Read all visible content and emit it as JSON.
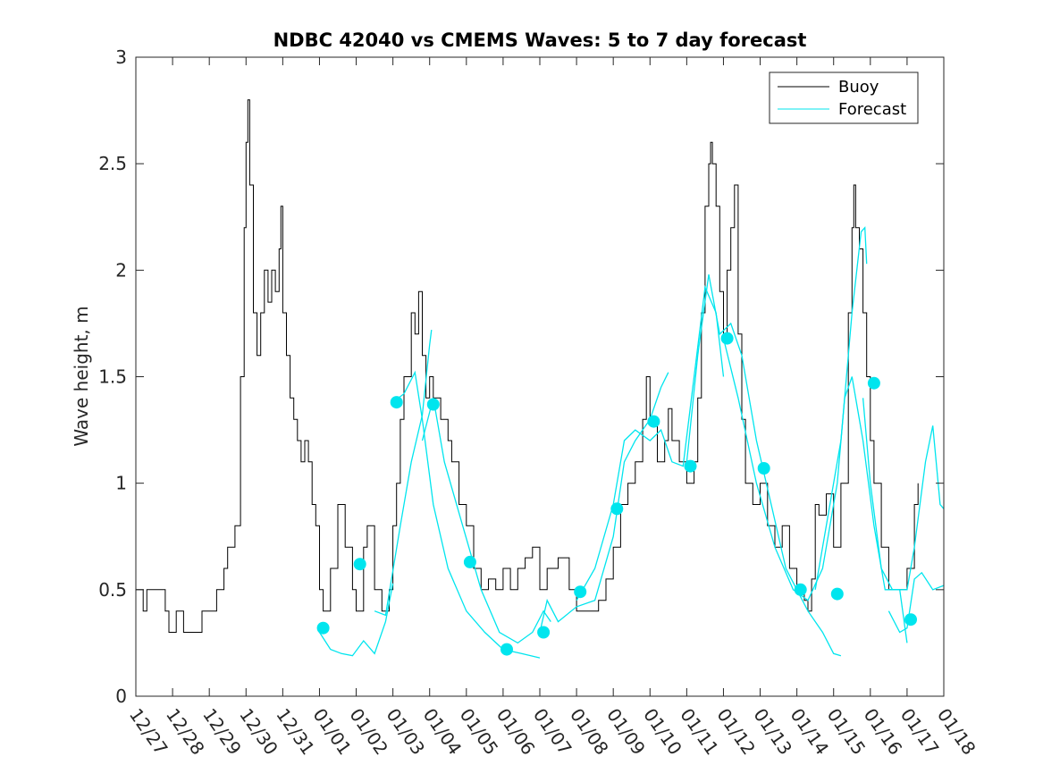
{
  "chart_data": {
    "type": "line",
    "title": "NDBC 42040 vs CMEMS Waves: 5 to 7 day forecast",
    "xlabel": "",
    "ylabel": "Wave height, m",
    "xlim": [
      0,
      22
    ],
    "ylim": [
      0,
      3
    ],
    "y_ticks": [
      "0",
      "0.5",
      "1",
      "1.5",
      "2",
      "2.5",
      "3"
    ],
    "x_tick_labels": [
      "12/27",
      "12/28",
      "12/29",
      "12/30",
      "12/31",
      "01/01",
      "01/02",
      "01/03",
      "01/04",
      "01/05",
      "01/06",
      "01/07",
      "01/08",
      "01/09",
      "01/10",
      "01/11",
      "01/12",
      "01/13",
      "01/14",
      "01/15",
      "01/16",
      "01/17",
      "01/18"
    ],
    "grid": false,
    "legend": {
      "location": "top-right",
      "entries": [
        "Buoy",
        "Forecast"
      ]
    },
    "colors": {
      "buoy": "#000000",
      "forecast": "#00e5ee"
    },
    "buoy_keypoints": [
      [
        0.0,
        0.5
      ],
      [
        0.2,
        0.4
      ],
      [
        0.3,
        0.5
      ],
      [
        0.8,
        0.4
      ],
      [
        0.9,
        0.3
      ],
      [
        1.1,
        0.4
      ],
      [
        1.3,
        0.3
      ],
      [
        1.6,
        0.3
      ],
      [
        1.8,
        0.4
      ],
      [
        2.2,
        0.5
      ],
      [
        2.4,
        0.6
      ],
      [
        2.5,
        0.7
      ],
      [
        2.7,
        0.8
      ],
      [
        2.85,
        1.5
      ],
      [
        2.95,
        2.2
      ],
      [
        3.0,
        2.6
      ],
      [
        3.05,
        2.8
      ],
      [
        3.1,
        2.4
      ],
      [
        3.2,
        1.8
      ],
      [
        3.3,
        1.6
      ],
      [
        3.4,
        1.8
      ],
      [
        3.5,
        2.0
      ],
      [
        3.6,
        1.85
      ],
      [
        3.7,
        2.0
      ],
      [
        3.8,
        1.9
      ],
      [
        3.9,
        2.1
      ],
      [
        3.95,
        2.3
      ],
      [
        4.0,
        1.8
      ],
      [
        4.1,
        1.6
      ],
      [
        4.2,
        1.4
      ],
      [
        4.3,
        1.3
      ],
      [
        4.4,
        1.2
      ],
      [
        4.5,
        1.1
      ],
      [
        4.6,
        1.2
      ],
      [
        4.7,
        1.1
      ],
      [
        4.8,
        0.9
      ],
      [
        4.9,
        0.8
      ],
      [
        5.0,
        0.5
      ],
      [
        5.1,
        0.4
      ],
      [
        5.3,
        0.6
      ],
      [
        5.5,
        0.9
      ],
      [
        5.7,
        0.7
      ],
      [
        5.9,
        0.5
      ],
      [
        6.0,
        0.4
      ],
      [
        6.2,
        0.7
      ],
      [
        6.3,
        0.8
      ],
      [
        6.5,
        0.5
      ],
      [
        6.7,
        0.4
      ],
      [
        6.9,
        0.5
      ],
      [
        7.0,
        0.8
      ],
      [
        7.1,
        1.0
      ],
      [
        7.2,
        1.3
      ],
      [
        7.3,
        1.5
      ],
      [
        7.5,
        1.8
      ],
      [
        7.6,
        1.7
      ],
      [
        7.7,
        1.9
      ],
      [
        7.8,
        1.6
      ],
      [
        7.9,
        1.4
      ],
      [
        8.0,
        1.5
      ],
      [
        8.1,
        1.4
      ],
      [
        8.3,
        1.3
      ],
      [
        8.5,
        1.2
      ],
      [
        8.6,
        1.1
      ],
      [
        8.8,
        0.9
      ],
      [
        9.0,
        0.8
      ],
      [
        9.2,
        0.6
      ],
      [
        9.4,
        0.5
      ],
      [
        9.6,
        0.55
      ],
      [
        9.8,
        0.5
      ],
      [
        10.0,
        0.6
      ],
      [
        10.2,
        0.5
      ],
      [
        10.4,
        0.6
      ],
      [
        10.6,
        0.65
      ],
      [
        10.8,
        0.7
      ],
      [
        11.0,
        0.5
      ],
      [
        11.2,
        0.6
      ],
      [
        11.5,
        0.65
      ],
      [
        11.8,
        0.5
      ],
      [
        12.0,
        0.4
      ],
      [
        12.3,
        0.4
      ],
      [
        12.6,
        0.45
      ],
      [
        12.8,
        0.55
      ],
      [
        13.0,
        0.7
      ],
      [
        13.2,
        0.9
      ],
      [
        13.4,
        1.0
      ],
      [
        13.6,
        1.1
      ],
      [
        13.8,
        1.3
      ],
      [
        13.9,
        1.5
      ],
      [
        14.0,
        1.3
      ],
      [
        14.2,
        1.1
      ],
      [
        14.4,
        1.2
      ],
      [
        14.5,
        1.35
      ],
      [
        14.6,
        1.2
      ],
      [
        14.8,
        1.1
      ],
      [
        15.0,
        1.0
      ],
      [
        15.2,
        1.1
      ],
      [
        15.3,
        1.4
      ],
      [
        15.4,
        1.8
      ],
      [
        15.5,
        2.3
      ],
      [
        15.6,
        2.5
      ],
      [
        15.65,
        2.6
      ],
      [
        15.7,
        2.5
      ],
      [
        15.8,
        2.3
      ],
      [
        15.9,
        1.9
      ],
      [
        16.0,
        1.7
      ],
      [
        16.1,
        2.0
      ],
      [
        16.2,
        2.2
      ],
      [
        16.3,
        2.4
      ],
      [
        16.4,
        1.7
      ],
      [
        16.5,
        1.3
      ],
      [
        16.6,
        1.0
      ],
      [
        16.8,
        0.9
      ],
      [
        17.0,
        1.0
      ],
      [
        17.2,
        0.8
      ],
      [
        17.4,
        0.7
      ],
      [
        17.6,
        0.8
      ],
      [
        17.8,
        0.6
      ],
      [
        18.0,
        0.5
      ],
      [
        18.2,
        0.45
      ],
      [
        18.3,
        0.4
      ],
      [
        18.4,
        0.55
      ],
      [
        18.5,
        0.9
      ],
      [
        18.6,
        0.85
      ],
      [
        18.8,
        0.95
      ],
      [
        19.0,
        0.7
      ],
      [
        19.2,
        1.0
      ],
      [
        19.4,
        1.8
      ],
      [
        19.5,
        2.2
      ],
      [
        19.55,
        2.4
      ],
      [
        19.6,
        2.2
      ],
      [
        19.7,
        2.1
      ],
      [
        19.8,
        1.8
      ],
      [
        19.9,
        1.5
      ],
      [
        20.0,
        1.2
      ],
      [
        20.1,
        1.0
      ],
      [
        20.3,
        0.7
      ],
      [
        20.5,
        0.5
      ],
      [
        20.8,
        0.5
      ],
      [
        21.0,
        0.6
      ],
      [
        21.2,
        0.9
      ],
      [
        21.3,
        1.0
      ]
    ],
    "forecast_segments": [
      [
        [
          5.0,
          0.3
        ],
        [
          5.3,
          0.22
        ],
        [
          5.6,
          0.2
        ],
        [
          5.9,
          0.19
        ],
        [
          6.2,
          0.26
        ],
        [
          6.5,
          0.2
        ],
        [
          6.8,
          0.35
        ],
        [
          7.0,
          0.53
        ]
      ],
      [
        [
          6.5,
          0.4
        ],
        [
          6.8,
          0.38
        ],
        [
          7.2,
          0.8
        ],
        [
          7.5,
          1.1
        ],
        [
          7.8,
          1.32
        ],
        [
          8.0,
          1.65
        ],
        [
          8.05,
          1.72
        ]
      ],
      [
        [
          7.0,
          1.38
        ],
        [
          7.3,
          1.42
        ],
        [
          7.6,
          1.52
        ],
        [
          7.8,
          1.3
        ],
        [
          8.1,
          0.9
        ],
        [
          8.5,
          0.6
        ],
        [
          9.0,
          0.4
        ],
        [
          9.5,
          0.3
        ],
        [
          10.0,
          0.22
        ],
        [
          10.5,
          0.2
        ],
        [
          11.0,
          0.18
        ]
      ],
      [
        [
          7.8,
          1.2
        ],
        [
          8.1,
          1.4
        ],
        [
          8.4,
          1.1
        ],
        [
          8.9,
          0.8
        ],
        [
          9.4,
          0.5
        ],
        [
          9.9,
          0.3
        ],
        [
          10.4,
          0.25
        ],
        [
          10.8,
          0.3
        ],
        [
          11.1,
          0.4
        ],
        [
          11.3,
          0.35
        ]
      ],
      [
        [
          11.0,
          0.3
        ],
        [
          11.2,
          0.45
        ],
        [
          11.5,
          0.35
        ],
        [
          12.0,
          0.42
        ],
        [
          12.5,
          0.45
        ],
        [
          13.0,
          0.75
        ],
        [
          13.3,
          1.1
        ],
        [
          13.6,
          1.2
        ],
        [
          14.0,
          1.3
        ],
        [
          14.3,
          1.45
        ],
        [
          14.5,
          1.52
        ]
      ],
      [
        [
          12.0,
          0.45
        ],
        [
          12.5,
          0.6
        ],
        [
          13.0,
          0.9
        ],
        [
          13.3,
          1.2
        ],
        [
          13.6,
          1.25
        ],
        [
          14.0,
          1.2
        ],
        [
          14.3,
          1.25
        ],
        [
          14.6,
          1.1
        ],
        [
          14.9,
          1.08
        ],
        [
          15.2,
          1.5
        ],
        [
          15.5,
          1.92
        ],
        [
          15.8,
          1.8
        ],
        [
          16.0,
          1.5
        ]
      ],
      [
        [
          15.0,
          1.1
        ],
        [
          15.3,
          1.6
        ],
        [
          15.6,
          1.98
        ],
        [
          15.9,
          1.7
        ],
        [
          16.2,
          1.75
        ],
        [
          16.5,
          1.6
        ],
        [
          16.9,
          1.2
        ],
        [
          17.3,
          0.9
        ],
        [
          17.7,
          0.6
        ],
        [
          18.0,
          0.5
        ],
        [
          18.3,
          0.4
        ],
        [
          18.7,
          0.3
        ],
        [
          19.0,
          0.2
        ],
        [
          19.2,
          0.19
        ]
      ],
      [
        [
          16.0,
          1.68
        ],
        [
          16.4,
          1.4
        ],
        [
          16.9,
          1.0
        ],
        [
          17.4,
          0.7
        ],
        [
          17.9,
          0.5
        ],
        [
          18.3,
          0.45
        ],
        [
          18.7,
          0.6
        ],
        [
          19.1,
          1.0
        ],
        [
          19.3,
          1.4
        ],
        [
          19.5,
          1.5
        ],
        [
          19.8,
          1.2
        ],
        [
          20.1,
          0.8
        ],
        [
          20.4,
          0.5
        ],
        [
          20.8,
          0.5
        ],
        [
          21.0,
          0.25
        ]
      ],
      [
        [
          18.5,
          0.5
        ],
        [
          18.9,
          0.9
        ],
        [
          19.2,
          1.2
        ],
        [
          19.5,
          1.8
        ],
        [
          19.75,
          2.18
        ],
        [
          19.85,
          2.2
        ],
        [
          19.9,
          2.03
        ]
      ],
      [
        [
          19.8,
          1.4
        ],
        [
          20.0,
          1.0
        ],
        [
          20.3,
          0.6
        ],
        [
          20.6,
          0.5
        ],
        [
          21.0,
          0.5
        ],
        [
          21.2,
          0.7
        ],
        [
          21.5,
          1.1
        ],
        [
          21.7,
          1.27
        ],
        [
          21.9,
          0.9
        ],
        [
          22.0,
          0.88
        ]
      ],
      [
        [
          20.5,
          0.4
        ],
        [
          20.8,
          0.3
        ],
        [
          21.0,
          0.32
        ],
        [
          21.2,
          0.55
        ],
        [
          21.4,
          0.58
        ],
        [
          21.7,
          0.5
        ],
        [
          22.0,
          0.52
        ]
      ]
    ],
    "forecast_markers": [
      [
        5.1,
        0.32
      ],
      [
        6.1,
        0.62
      ],
      [
        7.1,
        1.38
      ],
      [
        8.1,
        1.37
      ],
      [
        9.1,
        0.63
      ],
      [
        10.1,
        0.22
      ],
      [
        11.1,
        0.3
      ],
      [
        12.1,
        0.49
      ],
      [
        13.1,
        0.88
      ],
      [
        14.1,
        1.29
      ],
      [
        15.1,
        1.08
      ],
      [
        16.1,
        1.68
      ],
      [
        17.1,
        1.07
      ],
      [
        18.1,
        0.5
      ],
      [
        19.1,
        0.48
      ],
      [
        20.1,
        1.47
      ],
      [
        21.1,
        0.36
      ]
    ]
  }
}
